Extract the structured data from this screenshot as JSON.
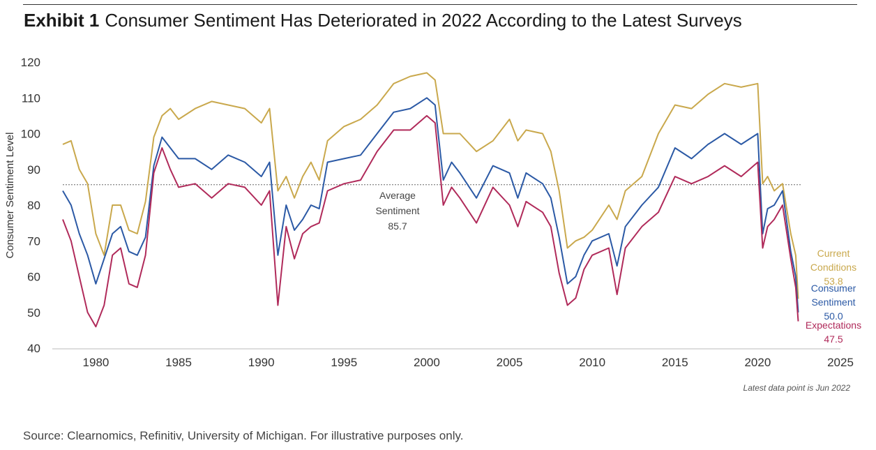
{
  "header": {
    "exhibit_label": "Exhibit 1",
    "title": "Consumer Sentiment Has Deteriorated in 2022 According to the Latest Surveys"
  },
  "footer": {
    "source": "Source: Clearnomics, Refinitiv, University of Michigan. For illustrative purposes only."
  },
  "chart_data": {
    "type": "line",
    "ylabel": "Consumer Sentiment Level",
    "xlabel": "",
    "ylim": [
      40,
      120
    ],
    "xlim": [
      1978,
      2025
    ],
    "yticks": [
      "40",
      "50",
      "60",
      "70",
      "80",
      "90",
      "100",
      "110",
      "120"
    ],
    "xticks": [
      "1980",
      "1985",
      "1990",
      "1995",
      "2000",
      "2005",
      "2010",
      "2015",
      "2020",
      "2025"
    ],
    "grid": false,
    "note": "Latest data point is Jun 2022",
    "average_line": {
      "value": 85.7,
      "label_lines": [
        "Average",
        "Sentiment",
        "85.7"
      ]
    },
    "series": [
      {
        "name": "Current Conditions",
        "color": "#c9a84c",
        "label_lines": [
          "Current",
          "Conditions",
          "53.8"
        ],
        "x": [
          1978.0,
          1978.5,
          1979.0,
          1979.5,
          1980.0,
          1980.5,
          1981.0,
          1981.5,
          1982.0,
          1982.5,
          1983.0,
          1983.5,
          1984.0,
          1984.5,
          1985.0,
          1986.0,
          1987.0,
          1988.0,
          1989.0,
          1990.0,
          1990.5,
          1991.0,
          1991.5,
          1992.0,
          1992.5,
          1993.0,
          1993.5,
          1994.0,
          1995.0,
          1996.0,
          1997.0,
          1998.0,
          1999.0,
          2000.0,
          2000.5,
          2001.0,
          2001.5,
          2002.0,
          2003.0,
          2004.0,
          2005.0,
          2005.5,
          2006.0,
          2007.0,
          2007.5,
          2008.0,
          2008.5,
          2009.0,
          2009.5,
          2010.0,
          2011.0,
          2011.5,
          2012.0,
          2013.0,
          2014.0,
          2015.0,
          2016.0,
          2017.0,
          2018.0,
          2019.0,
          2020.0,
          2020.3,
          2020.6,
          2021.0,
          2021.5,
          2022.0,
          2022.3,
          2022.45
        ],
        "values": [
          97,
          98,
          90,
          86,
          72,
          66,
          80,
          80,
          73,
          72,
          81,
          99,
          105,
          107,
          104,
          107,
          109,
          108,
          107,
          103,
          107,
          84,
          88,
          82,
          88,
          92,
          87,
          98,
          102,
          104,
          108,
          114,
          116,
          117,
          115,
          100,
          100,
          100,
          95,
          98,
          104,
          98,
          101,
          100,
          95,
          84,
          68,
          70,
          71,
          73,
          80,
          76,
          84,
          88,
          100,
          108,
          107,
          111,
          114,
          113,
          114,
          86,
          88,
          84,
          86,
          72,
          66,
          53.8
        ]
      },
      {
        "name": "Consumer Sentiment",
        "color": "#2b59a5",
        "label_lines": [
          "Consumer",
          "Sentiment",
          "50.0"
        ],
        "x": [
          1978.0,
          1978.5,
          1979.0,
          1979.5,
          1980.0,
          1980.5,
          1981.0,
          1981.5,
          1982.0,
          1982.5,
          1983.0,
          1983.5,
          1984.0,
          1984.5,
          1985.0,
          1986.0,
          1987.0,
          1988.0,
          1989.0,
          1990.0,
          1990.5,
          1991.0,
          1991.5,
          1992.0,
          1992.5,
          1993.0,
          1993.5,
          1994.0,
          1995.0,
          1996.0,
          1997.0,
          1998.0,
          1999.0,
          2000.0,
          2000.5,
          2001.0,
          2001.5,
          2002.0,
          2003.0,
          2004.0,
          2005.0,
          2005.5,
          2006.0,
          2007.0,
          2007.5,
          2008.0,
          2008.5,
          2009.0,
          2009.5,
          2010.0,
          2011.0,
          2011.5,
          2012.0,
          2013.0,
          2014.0,
          2015.0,
          2016.0,
          2017.0,
          2018.0,
          2019.0,
          2020.0,
          2020.3,
          2020.6,
          2021.0,
          2021.5,
          2022.0,
          2022.3,
          2022.45
        ],
        "values": [
          84,
          80,
          72,
          66,
          58,
          65,
          72,
          74,
          67,
          66,
          71,
          91,
          99,
          96,
          93,
          93,
          90,
          94,
          92,
          88,
          92,
          66,
          80,
          73,
          76,
          80,
          79,
          92,
          93,
          94,
          100,
          106,
          107,
          110,
          108,
          87,
          92,
          89,
          82,
          91,
          89,
          82,
          89,
          86,
          82,
          71,
          58,
          60,
          66,
          70,
          72,
          63,
          74,
          80,
          85,
          96,
          93,
          97,
          100,
          97,
          100,
          72,
          79,
          80,
          84,
          67,
          60,
          50.0
        ]
      },
      {
        "name": "Expectations",
        "color": "#b02a5a",
        "label_lines": [
          "Expectations",
          "47.5"
        ],
        "x": [
          1978.0,
          1978.5,
          1979.0,
          1979.5,
          1980.0,
          1980.5,
          1981.0,
          1981.5,
          1982.0,
          1982.5,
          1983.0,
          1983.5,
          1984.0,
          1984.5,
          1985.0,
          1986.0,
          1987.0,
          1988.0,
          1989.0,
          1990.0,
          1990.5,
          1991.0,
          1991.5,
          1992.0,
          1992.5,
          1993.0,
          1993.5,
          1994.0,
          1995.0,
          1996.0,
          1997.0,
          1998.0,
          1999.0,
          2000.0,
          2000.5,
          2001.0,
          2001.5,
          2002.0,
          2003.0,
          2004.0,
          2005.0,
          2005.5,
          2006.0,
          2007.0,
          2007.5,
          2008.0,
          2008.5,
          2009.0,
          2009.5,
          2010.0,
          2011.0,
          2011.5,
          2012.0,
          2013.0,
          2014.0,
          2015.0,
          2016.0,
          2017.0,
          2018.0,
          2019.0,
          2020.0,
          2020.3,
          2020.6,
          2021.0,
          2021.5,
          2022.0,
          2022.3,
          2022.45
        ],
        "values": [
          76,
          70,
          60,
          50,
          46,
          52,
          66,
          68,
          58,
          57,
          66,
          89,
          96,
          90,
          85,
          86,
          82,
          86,
          85,
          80,
          84,
          52,
          74,
          65,
          72,
          74,
          75,
          84,
          86,
          87,
          95,
          101,
          101,
          105,
          103,
          80,
          85,
          82,
          75,
          85,
          80,
          74,
          81,
          78,
          74,
          61,
          52,
          54,
          62,
          66,
          68,
          55,
          68,
          74,
          78,
          88,
          86,
          88,
          91,
          88,
          92,
          68,
          74,
          76,
          80,
          65,
          57,
          47.5
        ]
      }
    ]
  }
}
